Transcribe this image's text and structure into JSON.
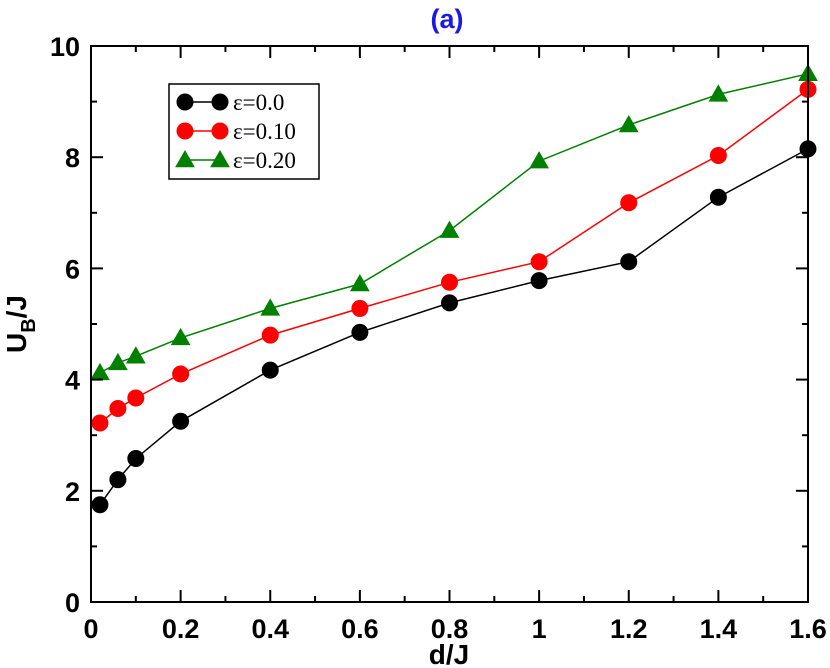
{
  "chart_data": {
    "type": "line",
    "title": "(a)",
    "title_color": "#1a1ae6",
    "xlabel": "d/J",
    "ylabel_main": "U",
    "ylabel_sub": "B",
    "ylabel_tail": "/J",
    "xlim": [
      0,
      1.6
    ],
    "ylim": [
      0,
      10
    ],
    "x_ticks": [
      0,
      0.2,
      0.4,
      0.6,
      0.8,
      1,
      1.2,
      1.4,
      1.6
    ],
    "x_tick_labels": [
      "0",
      "0.2",
      "0.4",
      "0.6",
      "0.8",
      "1",
      "1.2",
      "1.4",
      "1.6"
    ],
    "y_ticks": [
      0,
      2,
      4,
      6,
      8,
      10
    ],
    "y_tick_labels": [
      "0",
      "2",
      "4",
      "6",
      "8",
      "10"
    ],
    "grid": false,
    "legend_position": "top-left",
    "series": [
      {
        "name": "ε=0.0",
        "color": "#000000",
        "marker": "circle",
        "x": [
          0.02,
          0.06,
          0.1,
          0.2,
          0.4,
          0.6,
          0.8,
          1.0,
          1.2,
          1.4,
          1.6
        ],
        "values": [
          1.75,
          2.2,
          2.58,
          3.25,
          4.17,
          4.85,
          5.38,
          5.78,
          6.12,
          7.28,
          8.15
        ]
      },
      {
        "name": "ε=0.10",
        "color": "#ff0000",
        "marker": "circle",
        "x": [
          0.02,
          0.06,
          0.1,
          0.2,
          0.4,
          0.6,
          0.8,
          1.0,
          1.2,
          1.4,
          1.6
        ],
        "values": [
          3.22,
          3.48,
          3.67,
          4.1,
          4.8,
          5.28,
          5.75,
          6.12,
          7.18,
          8.03,
          9.22
        ]
      },
      {
        "name": "ε=0.20",
        "color": "#008000",
        "marker": "triangle",
        "x": [
          0.02,
          0.06,
          0.1,
          0.2,
          0.4,
          0.6,
          0.8,
          1.0,
          1.2,
          1.4,
          1.6
        ],
        "values": [
          4.12,
          4.3,
          4.42,
          4.75,
          5.28,
          5.72,
          6.68,
          7.93,
          8.58,
          9.13,
          9.5
        ]
      }
    ]
  }
}
